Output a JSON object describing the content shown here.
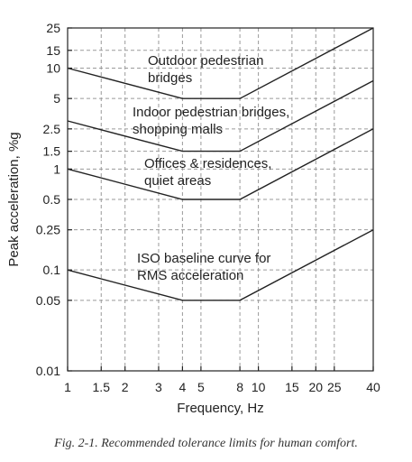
{
  "chart_data": {
    "type": "line",
    "xlabel": "Frequency, Hz",
    "ylabel": "Peak acceleration, %g",
    "xscale": "log",
    "yscale": "log",
    "xlim": [
      1,
      40
    ],
    "ylim": [
      0.01,
      25
    ],
    "xticks": [
      1,
      1.5,
      2,
      3,
      4,
      5,
      8,
      10,
      15,
      20,
      25,
      40
    ],
    "xtick_labels": [
      "1",
      "1.5",
      "2",
      "3",
      "4",
      "5",
      "8",
      "10",
      "15",
      "20",
      "25",
      "40"
    ],
    "yticks": [
      0.01,
      0.05,
      0.1,
      0.25,
      0.5,
      1,
      1.5,
      2.5,
      5,
      10,
      15,
      25
    ],
    "ytick_labels": [
      "0.01",
      "0.05",
      "0.1",
      "0.25",
      "0.5",
      "1",
      "1.5",
      "2.5",
      "5",
      "10",
      "15",
      "25"
    ],
    "grid": true,
    "series": [
      {
        "label_lines": [
          "Outdoor pedestrian",
          "bridges"
        ],
        "points": [
          [
            1,
            10
          ],
          [
            4,
            5
          ],
          [
            8,
            5
          ],
          [
            40,
            25
          ]
        ]
      },
      {
        "label_lines": [
          "Indoor pedestrian bridges,",
          "shopping malls"
        ],
        "points": [
          [
            1,
            3
          ],
          [
            4,
            1.5
          ],
          [
            8,
            1.5
          ],
          [
            40,
            7.5
          ]
        ]
      },
      {
        "label_lines": [
          "Offices & residences,",
          "quiet areas"
        ],
        "points": [
          [
            1,
            1
          ],
          [
            4,
            0.5
          ],
          [
            8,
            0.5
          ],
          [
            40,
            2.5
          ]
        ]
      },
      {
        "label_lines": [
          "ISO baseline curve for",
          "RMS acceleration"
        ],
        "points": [
          [
            1,
            0.1
          ],
          [
            4,
            0.05
          ],
          [
            8,
            0.05
          ],
          [
            40,
            0.25
          ]
        ]
      }
    ]
  },
  "caption": "Fig. 2-1.  Recommended tolerance limits for human comfort."
}
